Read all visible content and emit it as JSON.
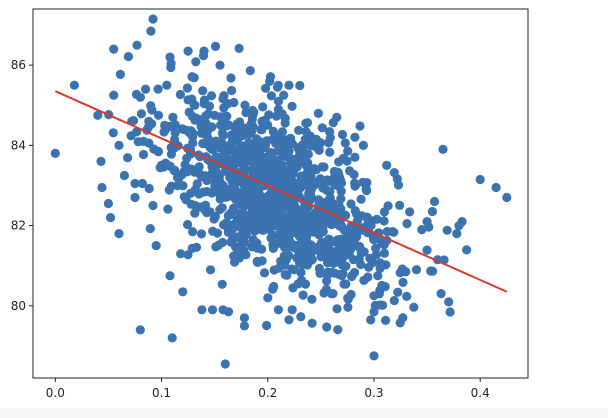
{
  "chart_data": {
    "type": "scatter",
    "title": "",
    "xlabel": "",
    "ylabel": "",
    "xlim": [
      -0.021,
      0.445
    ],
    "ylim": [
      78.2,
      87.4
    ],
    "x_ticks": [
      0.0,
      0.1,
      0.2,
      0.3,
      0.4
    ],
    "x_tick_labels": [
      "0.0",
      "0.1",
      "0.2",
      "0.3",
      "0.4"
    ],
    "y_ticks": [
      80,
      82,
      84,
      86
    ],
    "y_tick_labels": [
      "80",
      "82",
      "84",
      "86"
    ],
    "grid": false,
    "legend": "none",
    "colors": {
      "points": "#3a73b0",
      "regression_line": "#d93a2b",
      "axes": "#222222"
    },
    "series": [
      {
        "type": "scatter",
        "n_points": 1200,
        "x_mean": 0.21,
        "x_sd": 0.055,
        "y_mean": 82.8,
        "y_sd": 1.25,
        "correlation": -0.55,
        "points": [
          [
            0.0,
            83.8
          ],
          [
            0.018,
            85.5
          ],
          [
            0.04,
            84.75
          ],
          [
            0.043,
            83.6
          ],
          [
            0.044,
            82.95
          ],
          [
            0.05,
            82.55
          ],
          [
            0.052,
            82.2
          ],
          [
            0.055,
            86.4
          ],
          [
            0.055,
            85.25
          ],
          [
            0.06,
            81.8
          ],
          [
            0.06,
            84.0
          ],
          [
            0.065,
            83.25
          ],
          [
            0.072,
            84.6
          ],
          [
            0.075,
            83.05
          ],
          [
            0.075,
            82.7
          ],
          [
            0.08,
            79.4
          ],
          [
            0.082,
            83.05
          ],
          [
            0.083,
            84.1
          ],
          [
            0.085,
            85.4
          ],
          [
            0.088,
            84.6
          ],
          [
            0.09,
            86.85
          ],
          [
            0.092,
            87.15
          ],
          [
            0.092,
            82.5
          ],
          [
            0.095,
            81.5
          ],
          [
            0.097,
            83.85
          ],
          [
            0.1,
            83.5
          ],
          [
            0.103,
            84.5
          ],
          [
            0.105,
            85.5
          ],
          [
            0.108,
            86.2
          ],
          [
            0.108,
            80.75
          ],
          [
            0.11,
            79.2
          ],
          [
            0.115,
            83.2
          ],
          [
            0.12,
            80.35
          ],
          [
            0.118,
            81.3
          ],
          [
            0.125,
            86.35
          ],
          [
            0.14,
            86.35
          ],
          [
            0.138,
            79.9
          ],
          [
            0.148,
            79.9
          ],
          [
            0.15,
            84.75
          ],
          [
            0.155,
            86.0
          ],
          [
            0.158,
            79.9
          ],
          [
            0.16,
            78.55
          ],
          [
            0.163,
            79.85
          ],
          [
            0.178,
            79.5
          ],
          [
            0.178,
            79.7
          ],
          [
            0.2,
            80.2
          ],
          [
            0.21,
            79.9
          ],
          [
            0.22,
            79.65
          ],
          [
            0.21,
            84.9
          ],
          [
            0.215,
            85.25
          ],
          [
            0.22,
            85.5
          ],
          [
            0.223,
            79.9
          ],
          [
            0.26,
            80.3
          ],
          [
            0.265,
            84.7
          ],
          [
            0.282,
            84.2
          ],
          [
            0.29,
            84.0
          ],
          [
            0.3,
            80.25
          ],
          [
            0.3,
            79.85
          ],
          [
            0.3,
            78.75
          ],
          [
            0.305,
            80.3
          ],
          [
            0.33,
            80.85
          ],
          [
            0.34,
            80.9
          ],
          [
            0.345,
            81.9
          ],
          [
            0.35,
            82.1
          ],
          [
            0.355,
            82.35
          ],
          [
            0.357,
            82.6
          ],
          [
            0.36,
            81.15
          ],
          [
            0.365,
            83.9
          ],
          [
            0.378,
            81.8
          ],
          [
            0.38,
            82.0
          ],
          [
            0.383,
            82.1
          ],
          [
            0.4,
            83.15
          ],
          [
            0.415,
            82.95
          ],
          [
            0.425,
            82.7
          ]
        ]
      },
      {
        "type": "line",
        "name": "",
        "x": [
          0.0,
          0.425
        ],
        "y": [
          85.35,
          80.35
        ]
      }
    ]
  }
}
